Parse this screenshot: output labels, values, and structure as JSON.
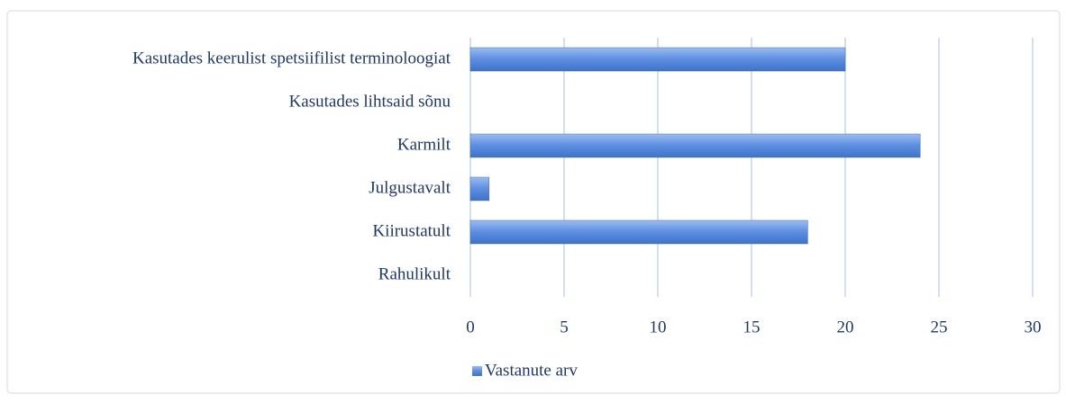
{
  "chart_data": {
    "type": "bar",
    "orientation": "horizontal",
    "categories": [
      "Kasutades keerulist spetsiifilist terminoloogiat",
      "Kasutades lihtsaid sõnu",
      "Karmilt",
      "Julgustavalt",
      "Kiirustatult",
      "Rahulikult"
    ],
    "series": [
      {
        "name": "Vastanute arv",
        "color": "#4f81d4",
        "values": [
          20,
          0,
          24,
          1,
          18,
          0
        ]
      }
    ],
    "xlim": [
      0,
      30
    ],
    "xticks": [
      0,
      5,
      10,
      15,
      20,
      25,
      30
    ],
    "grid": true,
    "legend": "bottom-left"
  }
}
